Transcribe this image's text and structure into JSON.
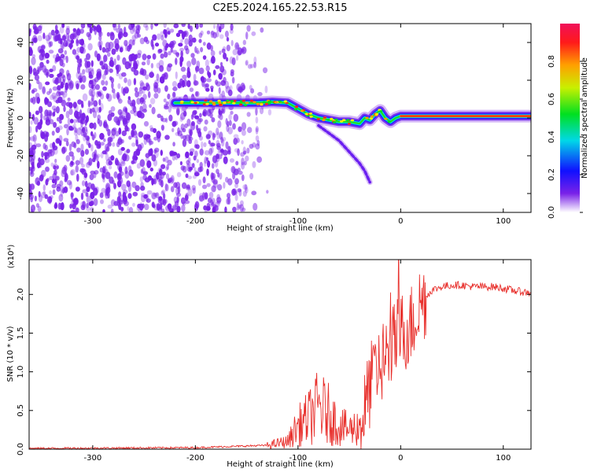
{
  "figure_title": "C2E5.2024.165.22.53.R15",
  "colors": {
    "signal": "#e8302c",
    "spectrum_bg": "#7a22e8"
  },
  "chart_data": [
    {
      "type": "heatmap",
      "name": "spectrogram",
      "xlabel": "Height of straight line (km)",
      "ylabel": "Frequency (Hz)",
      "xlim": [
        -362,
        127
      ],
      "ylim": [
        -50,
        50
      ],
      "x_ticks": [
        -300,
        -200,
        -100,
        0,
        100
      ],
      "x_tick_labels": [
        "-300",
        "-200",
        "-100",
        "0",
        "100"
      ],
      "y_ticks": [
        -40,
        -20,
        0,
        20,
        40
      ],
      "y_tick_labels": [
        "-40",
        "-20",
        "0",
        "20",
        "40"
      ],
      "ridge": {
        "x": [
          -220,
          -190,
          -160,
          -140,
          -125,
          -110,
          -100,
          -90,
          -80,
          -70,
          -60,
          -50,
          -40,
          -35,
          -30,
          -25,
          -20,
          -15,
          -10,
          -5,
          0,
          20,
          40,
          60,
          80,
          100,
          127
        ],
        "y": [
          8,
          8,
          8,
          8,
          8.5,
          8,
          5,
          2,
          0,
          -1,
          -2,
          -2,
          -3,
          0,
          -1,
          2,
          4,
          0,
          -2,
          0,
          1,
          1,
          1,
          1,
          1,
          1,
          1
        ]
      },
      "branch": {
        "x": [
          -80,
          -70,
          -60,
          -50,
          -40,
          -35,
          -30
        ],
        "y": [
          -4,
          -8,
          -12,
          -18,
          -24,
          -28,
          -34
        ]
      },
      "colorbar": {
        "label": "Normalized spectral amplitude",
        "ticks": [
          0.0,
          0.2,
          0.4,
          0.6,
          0.8
        ],
        "tick_labels": [
          "0.0",
          "0.2",
          "0.4",
          "0.6",
          "0.8"
        ],
        "range": [
          0,
          1
        ]
      }
    },
    {
      "type": "line",
      "name": "snr",
      "xlabel": "Height of straight line (km)",
      "ylabel": "SNR (10 * v/v)",
      "scale_label": "(x10⁴)",
      "xlim": [
        -362,
        127
      ],
      "ylim": [
        0,
        2.45
      ],
      "x_ticks": [
        -300,
        -200,
        -100,
        0,
        100
      ],
      "x_tick_labels": [
        "-300",
        "-200",
        "-100",
        "0",
        "100"
      ],
      "y_ticks": [
        0.0,
        0.5,
        1.0,
        1.5,
        2.0
      ],
      "y_tick_labels": [
        "0.0",
        "0.5",
        "1.0",
        "1.5",
        "2.0"
      ],
      "series": [
        {
          "name": "SNR envelope",
          "x": [
            -362,
            -200,
            -130,
            -110,
            -100,
            -90,
            -80,
            -70,
            -60,
            -50,
            -40,
            -35,
            -30,
            -25,
            -20,
            -15,
            -10,
            -5,
            0,
            10,
            20,
            30,
            40,
            50,
            60,
            70,
            80,
            90,
            100,
            110,
            120,
            127
          ],
          "y": [
            0.01,
            0.02,
            0.05,
            0.1,
            0.3,
            0.4,
            0.55,
            0.45,
            0.3,
            0.25,
            0.3,
            0.5,
            0.8,
            1.0,
            1.1,
            1.2,
            1.25,
            1.4,
            1.5,
            1.6,
            1.9,
            2.05,
            2.1,
            2.12,
            2.12,
            2.1,
            2.1,
            2.1,
            2.08,
            2.05,
            2.03,
            2.02
          ]
        }
      ]
    }
  ]
}
